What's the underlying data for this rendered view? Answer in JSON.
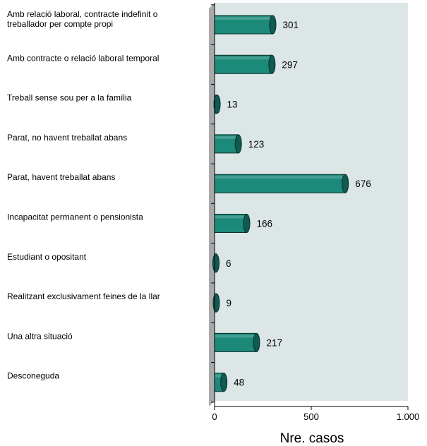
{
  "chart_data": {
    "type": "bar",
    "orientation": "horizontal",
    "categories": [
      [
        "Amb relació laboral, contracte indefinit o",
        "treballador per compte propi"
      ],
      [
        "Amb contracte o relació laboral temporal"
      ],
      [
        "Treball sense sou per a la família"
      ],
      [
        "Parat, no havent treballat abans"
      ],
      [
        "Parat, havent treballat abans"
      ],
      [
        "Incapacitat permanent o pensionista"
      ],
      [
        "Estudiant o opositant"
      ],
      [
        "Realitzant exclusivament feines de la llar"
      ],
      [
        "Una altra situació"
      ],
      [
        "Desconeguda"
      ]
    ],
    "values": [
      301,
      297,
      13,
      123,
      676,
      166,
      6,
      9,
      217,
      48
    ],
    "value_labels": [
      "301",
      "297",
      "13",
      "123",
      "676",
      "166",
      "6",
      "9",
      "217",
      "48"
    ],
    "xlabel": "Nre. casos",
    "xlim": [
      0,
      1000
    ],
    "xticks": [
      0,
      500,
      1000
    ],
    "xtick_labels": [
      "0",
      "500",
      "1.000"
    ],
    "grid": false,
    "colors": {
      "plot_background": "#dce6e6",
      "floor_side": "#a9a9a9",
      "bar_fill": "#1b8a7a",
      "bar_cap": "#0f5b52",
      "bar_outline": "#0b2d29"
    }
  }
}
